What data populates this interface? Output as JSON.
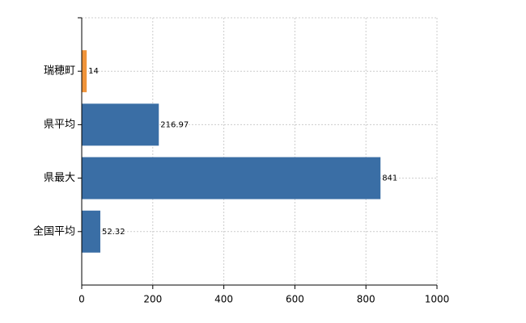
{
  "chart_data": {
    "type": "barh",
    "categories": [
      "瑞穂町",
      "県平均",
      "県最大",
      "全国平均"
    ],
    "values": [
      14,
      216.97,
      841,
      52.32
    ],
    "colors": [
      "#f0943a",
      "#3a6ea5",
      "#3a6ea5",
      "#3a6ea5"
    ],
    "xlim": [
      0,
      1000
    ],
    "xticks": [
      0,
      200,
      400,
      600,
      800,
      1000
    ],
    "grid": true
  }
}
